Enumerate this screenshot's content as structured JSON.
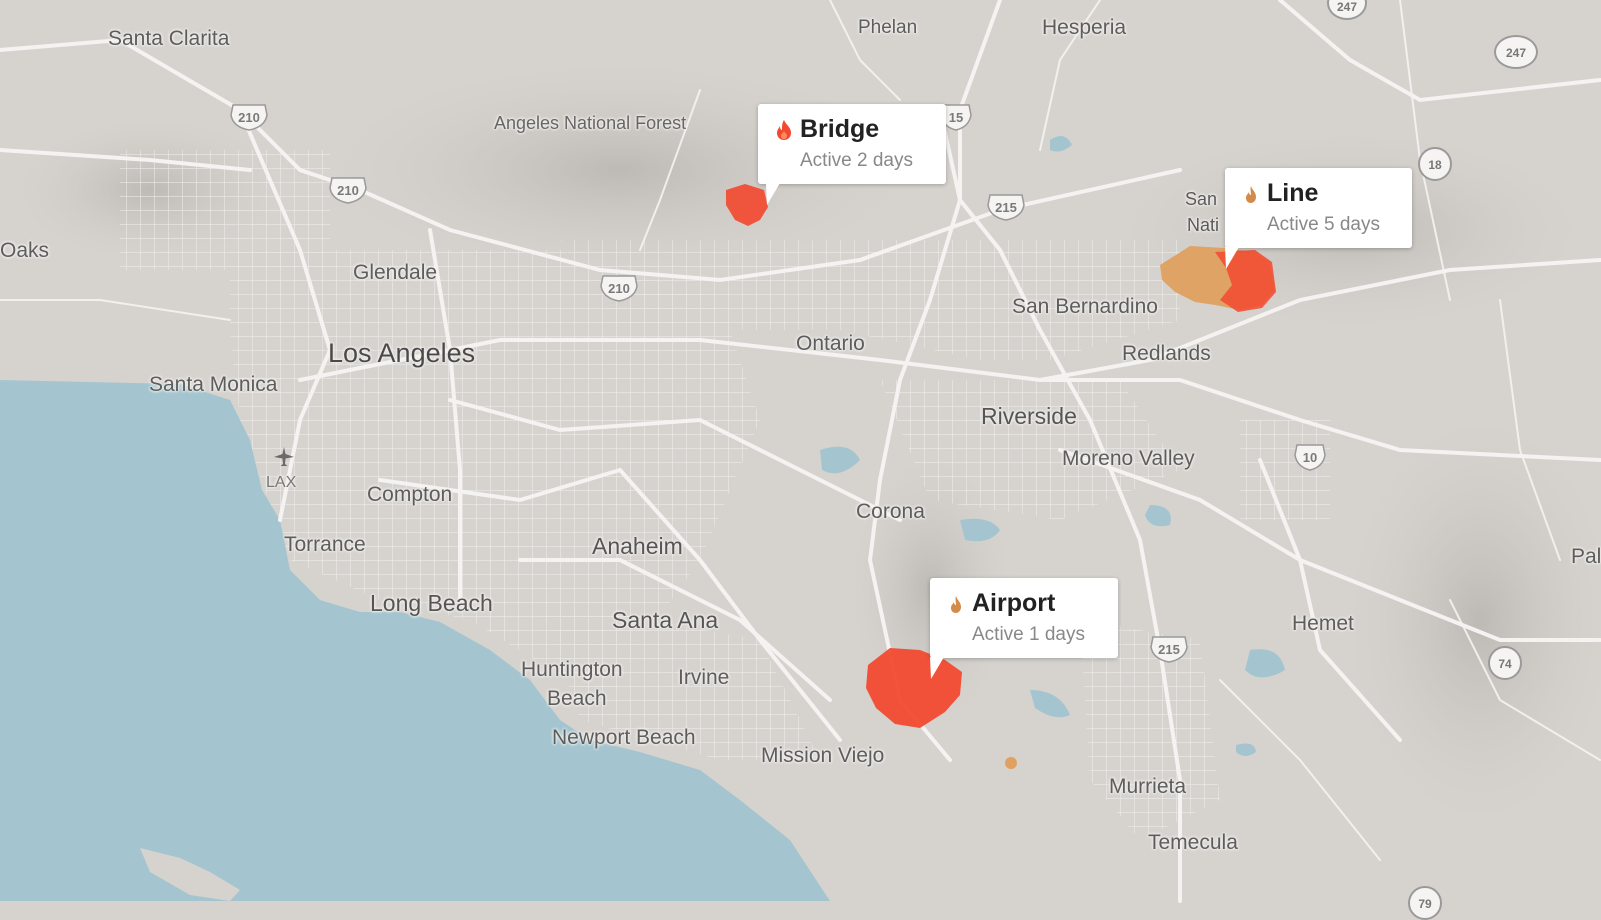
{
  "map": {
    "colors": {
      "land": "#d6d3cf",
      "water": "#a4c5d0",
      "roads": "#f4f3f1",
      "fire_active": "#f24a30",
      "fire_contained": "#e0a060"
    },
    "places": [
      {
        "name": "Santa Clarita"
      },
      {
        "name": "Phelan"
      },
      {
        "name": "Hesperia"
      },
      {
        "name": "Angeles National Forest"
      },
      {
        "name": "Oaks"
      },
      {
        "name": "Glendale"
      },
      {
        "name": "Los Angeles"
      },
      {
        "name": "Santa Monica"
      },
      {
        "name": "Ontario"
      },
      {
        "name": "San Bernardino"
      },
      {
        "name": "Redlands"
      },
      {
        "name": "Riverside"
      },
      {
        "name": "Moreno Valley"
      },
      {
        "name": "LAX"
      },
      {
        "name": "Compton"
      },
      {
        "name": "Torrance"
      },
      {
        "name": "Anaheim"
      },
      {
        "name": "Corona"
      },
      {
        "name": "Long Beach"
      },
      {
        "name": "Santa Ana"
      },
      {
        "name": "Huntington"
      },
      {
        "name": "Beach"
      },
      {
        "name": "Irvine"
      },
      {
        "name": "Newport Beach"
      },
      {
        "name": "Mission Viejo"
      },
      {
        "name": "Hemet"
      },
      {
        "name": "Murrieta"
      },
      {
        "name": "Temecula"
      },
      {
        "name": "San"
      },
      {
        "name": "Nati"
      },
      {
        "name": "Pal"
      }
    ],
    "highways": [
      {
        "num": "210"
      },
      {
        "num": "210"
      },
      {
        "num": "210"
      },
      {
        "num": "15"
      },
      {
        "num": "215"
      },
      {
        "num": "10"
      },
      {
        "num": "215"
      },
      {
        "num": "247"
      },
      {
        "num": "247"
      },
      {
        "num": "18"
      },
      {
        "num": "74"
      },
      {
        "num": "79"
      }
    ],
    "fires": [
      {
        "name": "Bridge",
        "status": "Active 2 days",
        "icon": "flame-red-icon",
        "color": "#f24a30"
      },
      {
        "name": "Line",
        "status": "Active 5 days",
        "icon": "flame-tan-icon",
        "color": "#d48a48"
      },
      {
        "name": "Airport",
        "status": "Active 1 days",
        "icon": "flame-tan-icon",
        "color": "#d48a48"
      }
    ]
  }
}
